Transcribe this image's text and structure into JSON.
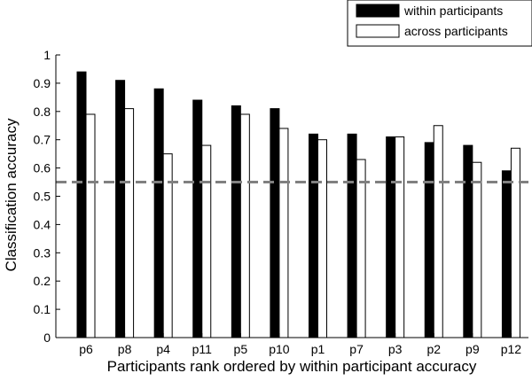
{
  "chart_data": {
    "type": "bar",
    "categories": [
      "p6",
      "p8",
      "p4",
      "p11",
      "p5",
      "p10",
      "p1",
      "p7",
      "p3",
      "p2",
      "p9",
      "p12"
    ],
    "series": [
      {
        "name": "within participants",
        "color": "#000000",
        "values": [
          0.94,
          0.91,
          0.88,
          0.84,
          0.82,
          0.81,
          0.72,
          0.72,
          0.71,
          0.69,
          0.68,
          0.59
        ]
      },
      {
        "name": "across participants",
        "color": "#ffffff",
        "values": [
          0.79,
          0.81,
          0.65,
          0.68,
          0.79,
          0.74,
          0.7,
          0.63,
          0.71,
          0.75,
          0.62,
          0.67
        ]
      }
    ],
    "xlabel": "Participants rank ordered by within participant accuracy",
    "ylabel": "Classification accuracy",
    "ylim": [
      0,
      1
    ],
    "yticks": [
      "0",
      "0.1",
      "0.2",
      "0.3",
      "0.4",
      "0.5",
      "0.6",
      "0.7",
      "0.8",
      "0.9",
      "1"
    ],
    "reference_line": {
      "value": 0.55,
      "style": "dashed",
      "color": "#808080"
    },
    "grid": false,
    "legend_position": "top-right"
  }
}
